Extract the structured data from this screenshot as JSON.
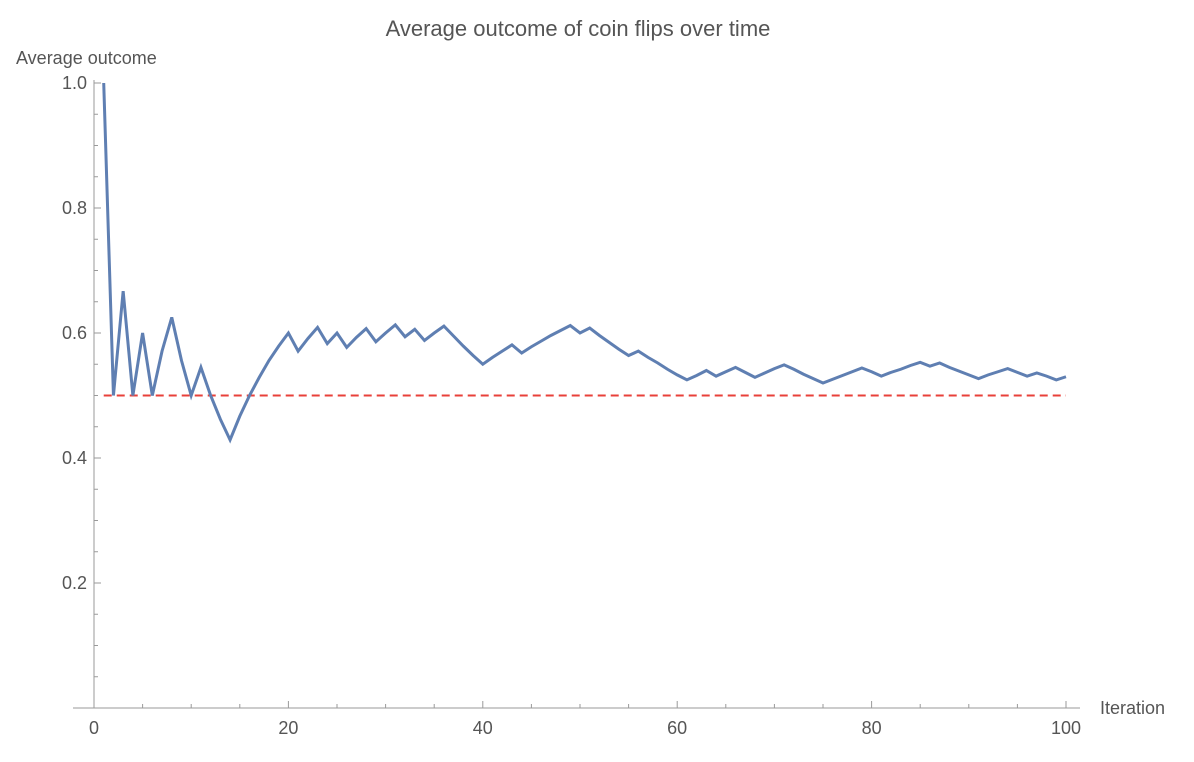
{
  "chart_data": {
    "type": "line",
    "title": "Average outcome of coin flips over time",
    "xlabel": "Iteration",
    "ylabel": "Average outcome",
    "xlim": [
      0,
      100
    ],
    "ylim": [
      0,
      1.0
    ],
    "x_ticks": [
      0,
      20,
      40,
      60,
      80,
      100
    ],
    "y_ticks": [
      0.2,
      0.4,
      0.6,
      0.8,
      1.0
    ],
    "x_tick_labels": [
      "0",
      "20",
      "40",
      "60",
      "80",
      "100"
    ],
    "y_tick_labels": [
      "0.2",
      "0.4",
      "0.6",
      "0.8",
      "1.0"
    ],
    "grid": false,
    "series": [
      {
        "color": "#5f7fb2",
        "points": [
          [
            1,
            1.0
          ],
          [
            2,
            0.5
          ],
          [
            3,
            0.667
          ],
          [
            4,
            0.5
          ],
          [
            5,
            0.6
          ],
          [
            6,
            0.5
          ],
          [
            7,
            0.571
          ],
          [
            8,
            0.625
          ],
          [
            9,
            0.556
          ],
          [
            10,
            0.5
          ],
          [
            11,
            0.545
          ],
          [
            12,
            0.5
          ],
          [
            13,
            0.462
          ],
          [
            14,
            0.429
          ],
          [
            15,
            0.467
          ],
          [
            16,
            0.5
          ],
          [
            17,
            0.529
          ],
          [
            18,
            0.556
          ],
          [
            19,
            0.579
          ],
          [
            20,
            0.6
          ],
          [
            21,
            0.571
          ],
          [
            22,
            0.591
          ],
          [
            23,
            0.609
          ],
          [
            24,
            0.583
          ],
          [
            25,
            0.6
          ],
          [
            26,
            0.577
          ],
          [
            27,
            0.593
          ],
          [
            28,
            0.607
          ],
          [
            29,
            0.586
          ],
          [
            30,
            0.6
          ],
          [
            31,
            0.613
          ],
          [
            32,
            0.594
          ],
          [
            33,
            0.606
          ],
          [
            34,
            0.588
          ],
          [
            35,
            0.6
          ],
          [
            36,
            0.611
          ],
          [
            37,
            0.595
          ],
          [
            38,
            0.579
          ],
          [
            39,
            0.564
          ],
          [
            40,
            0.55
          ],
          [
            41,
            0.561
          ],
          [
            42,
            0.571
          ],
          [
            43,
            0.581
          ],
          [
            44,
            0.568
          ],
          [
            45,
            0.578
          ],
          [
            46,
            0.587
          ],
          [
            47,
            0.596
          ],
          [
            48,
            0.604
          ],
          [
            49,
            0.612
          ],
          [
            50,
            0.6
          ],
          [
            51,
            0.608
          ],
          [
            52,
            0.596
          ],
          [
            53,
            0.585
          ],
          [
            54,
            0.574
          ],
          [
            55,
            0.564
          ],
          [
            56,
            0.571
          ],
          [
            57,
            0.561
          ],
          [
            58,
            0.552
          ],
          [
            59,
            0.542
          ],
          [
            60,
            0.533
          ],
          [
            61,
            0.525
          ],
          [
            62,
            0.532
          ],
          [
            63,
            0.54
          ],
          [
            64,
            0.531
          ],
          [
            65,
            0.538
          ],
          [
            66,
            0.545
          ],
          [
            67,
            0.537
          ],
          [
            68,
            0.529
          ],
          [
            69,
            0.536
          ],
          [
            70,
            0.543
          ],
          [
            71,
            0.549
          ],
          [
            72,
            0.542
          ],
          [
            73,
            0.534
          ],
          [
            74,
            0.527
          ],
          [
            75,
            0.52
          ],
          [
            76,
            0.526
          ],
          [
            77,
            0.532
          ],
          [
            78,
            0.538
          ],
          [
            79,
            0.544
          ],
          [
            80,
            0.538
          ],
          [
            81,
            0.531
          ],
          [
            82,
            0.537
          ],
          [
            83,
            0.542
          ],
          [
            84,
            0.548
          ],
          [
            85,
            0.553
          ],
          [
            86,
            0.547
          ],
          [
            87,
            0.552
          ],
          [
            88,
            0.545
          ],
          [
            89,
            0.539
          ],
          [
            90,
            0.533
          ],
          [
            91,
            0.527
          ],
          [
            92,
            0.533
          ],
          [
            93,
            0.538
          ],
          [
            94,
            0.543
          ],
          [
            95,
            0.537
          ],
          [
            96,
            0.531
          ],
          [
            97,
            0.536
          ],
          [
            98,
            0.531
          ],
          [
            99,
            0.525
          ],
          [
            100,
            0.53
          ]
        ]
      }
    ],
    "reference_line": {
      "y": 0.5,
      "color": "#e8403a",
      "style": "dashed"
    }
  }
}
